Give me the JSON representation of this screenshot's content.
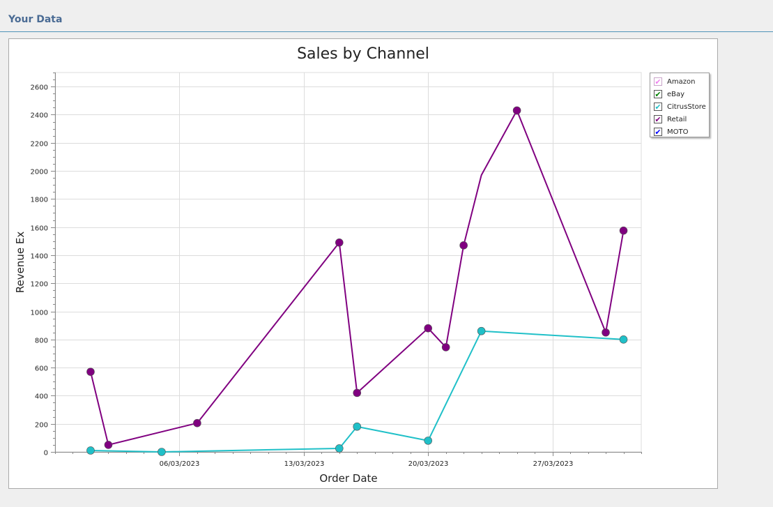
{
  "page": {
    "section_title": "Your Data"
  },
  "legend": {
    "items": [
      {
        "label": "Amazon",
        "color": "#ee82ee",
        "checked": true
      },
      {
        "label": "eBay",
        "color": "#008000",
        "checked": true
      },
      {
        "label": "CitrusStore",
        "color": "#20c0c8",
        "checked": true
      },
      {
        "label": "Retail",
        "color": "#800080",
        "checked": true
      },
      {
        "label": "MOTO",
        "color": "#0000ff",
        "checked": true
      }
    ]
  },
  "chart_data": {
    "type": "line",
    "title": "Sales by Channel",
    "xlabel": "Order Date",
    "ylabel": "Revenue Ex",
    "x_type": "date",
    "xlim": [
      "2023-02-27",
      "2023-04-01"
    ],
    "x_ticks": [
      "2023-03-06",
      "2023-03-13",
      "2023-03-20",
      "2023-03-27"
    ],
    "x_tick_labels": [
      "06/03/2023",
      "13/03/2023",
      "20/03/2023",
      "27/03/2023"
    ],
    "ylim": [
      0,
      2700
    ],
    "y_ticks": [
      0,
      200,
      400,
      600,
      800,
      1000,
      1200,
      1400,
      1600,
      1800,
      2000,
      2200,
      2400,
      2600
    ],
    "grid": true,
    "legend_position": "top-right",
    "series": [
      {
        "name": "Retail",
        "color": "#800080",
        "points": [
          {
            "x": "2023-03-01",
            "y": 570
          },
          {
            "x": "2023-03-02",
            "y": 50
          },
          {
            "x": "2023-03-07",
            "y": 205
          },
          {
            "x": "2023-03-15",
            "y": 1490
          },
          {
            "x": "2023-03-16",
            "y": 420
          },
          {
            "x": "2023-03-20",
            "y": 880
          },
          {
            "x": "2023-03-21",
            "y": 745
          },
          {
            "x": "2023-03-22",
            "y": 1470
          },
          {
            "x": "2023-03-23",
            "y": 1970,
            "marker": false
          },
          {
            "x": "2023-03-25",
            "y": 2430
          },
          {
            "x": "2023-03-30",
            "y": 850
          },
          {
            "x": "2023-03-31",
            "y": 1575
          }
        ]
      },
      {
        "name": "CitrusStore",
        "color": "#20c0c8",
        "points": [
          {
            "x": "2023-03-01",
            "y": 10
          },
          {
            "x": "2023-03-05",
            "y": 0
          },
          {
            "x": "2023-03-15",
            "y": 25
          },
          {
            "x": "2023-03-16",
            "y": 180
          },
          {
            "x": "2023-03-20",
            "y": 80
          },
          {
            "x": "2023-03-23",
            "y": 860
          },
          {
            "x": "2023-03-31",
            "y": 800
          }
        ]
      }
    ]
  }
}
